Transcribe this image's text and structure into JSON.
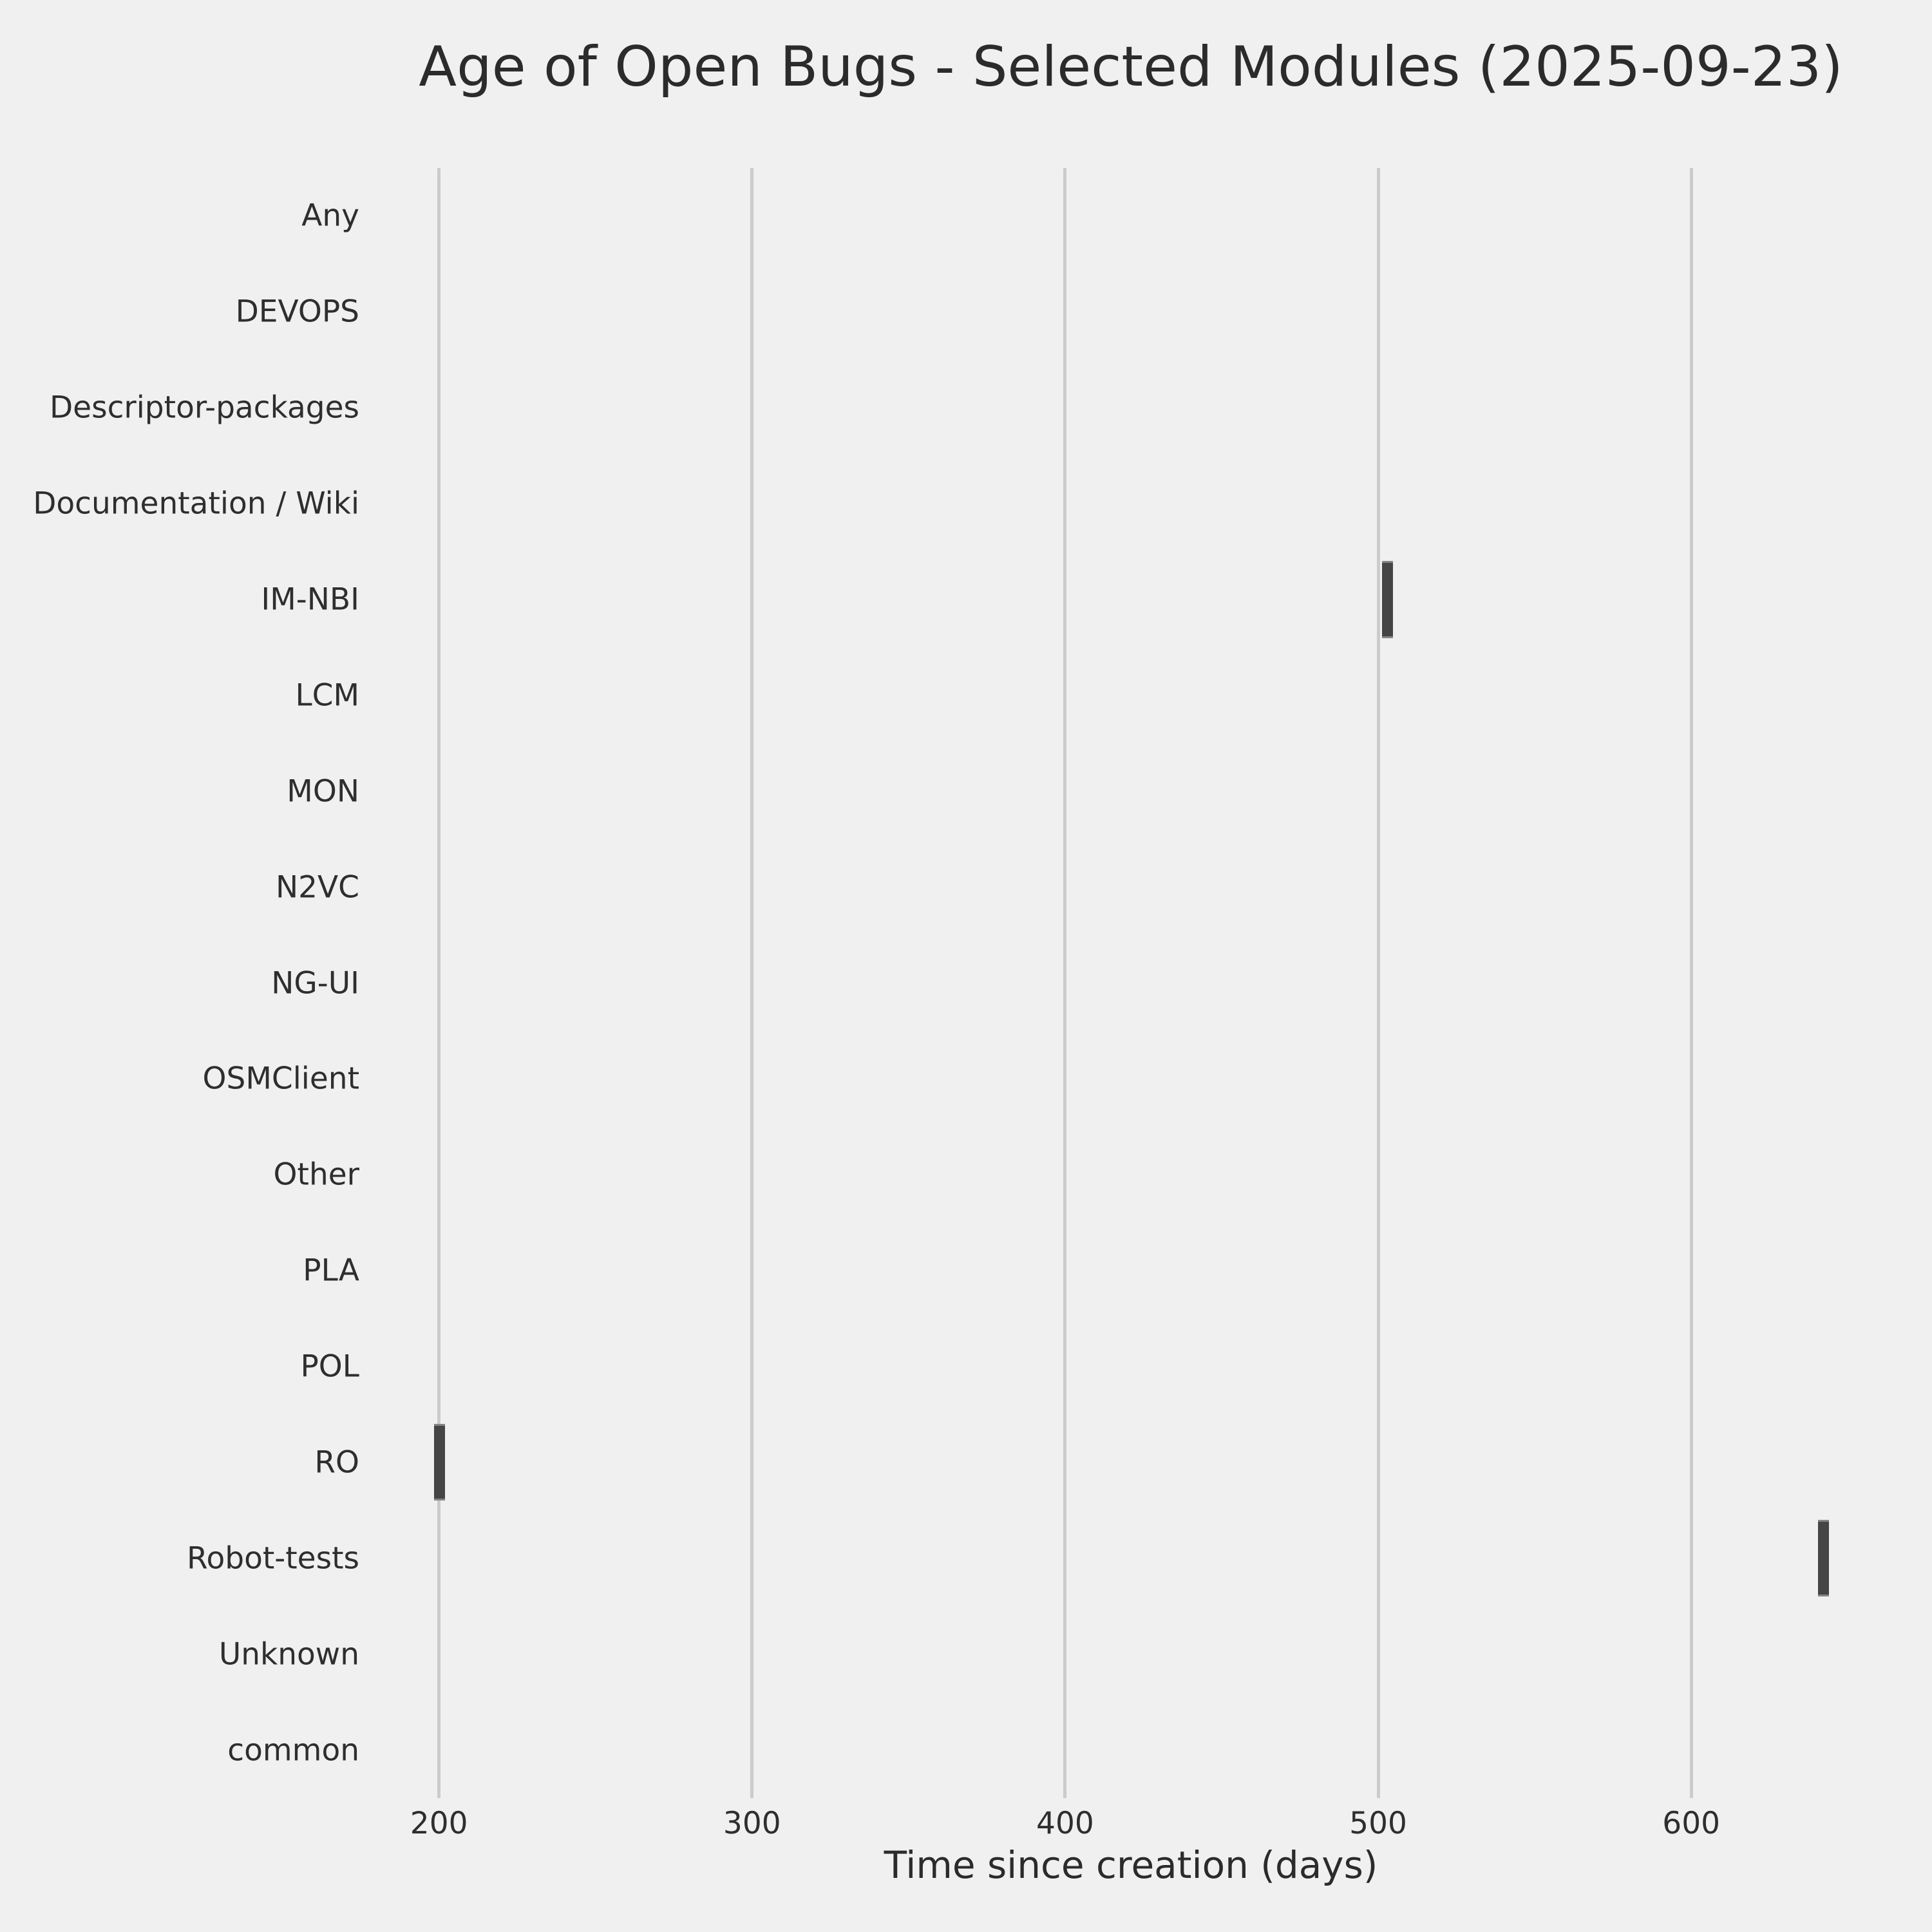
{
  "title": "Age of Open Bugs - Selected Modules (2025-09-23)",
  "xlabel": "Time since creation (days)",
  "chart_data": {
    "type": "boxplot",
    "orientation": "horizontal",
    "title": "Age of Open Bugs - Selected Modules (2025-09-23)",
    "xlabel": "Time since creation (days)",
    "ylabel": "",
    "categories": [
      "Any",
      "DEVOPS",
      "Descriptor-packages",
      "Documentation / Wiki",
      "IM-NBI",
      "LCM",
      "MON",
      "N2VC",
      "NG-UI",
      "OSMClient",
      "Other",
      "PLA",
      "POL",
      "RO",
      "Robot-tests",
      "Unknown",
      "common"
    ],
    "x_ticks": [
      200,
      300,
      400,
      500,
      600
    ],
    "xlim": [
      176,
      666
    ],
    "grid": true,
    "legend": false,
    "boxes": [
      {
        "category": "IM-NBI",
        "min": 501,
        "q1": 501.3,
        "median": 503.1,
        "q3": 504.8,
        "max": 505
      },
      {
        "category": "RO",
        "min": 198.5,
        "q1": 198.5,
        "median": 200.2,
        "q3": 201.9,
        "max": 202
      },
      {
        "category": "Robot-tests",
        "min": 640.5,
        "q1": 640.5,
        "median": 642.2,
        "q3": 643.9,
        "max": 644
      }
    ],
    "colors": {
      "background": "#f0f0f0",
      "gridline": "#cbcbcb",
      "box_fill": "#454545",
      "box_edge": "#858585",
      "text": "#2e2e2e"
    }
  }
}
